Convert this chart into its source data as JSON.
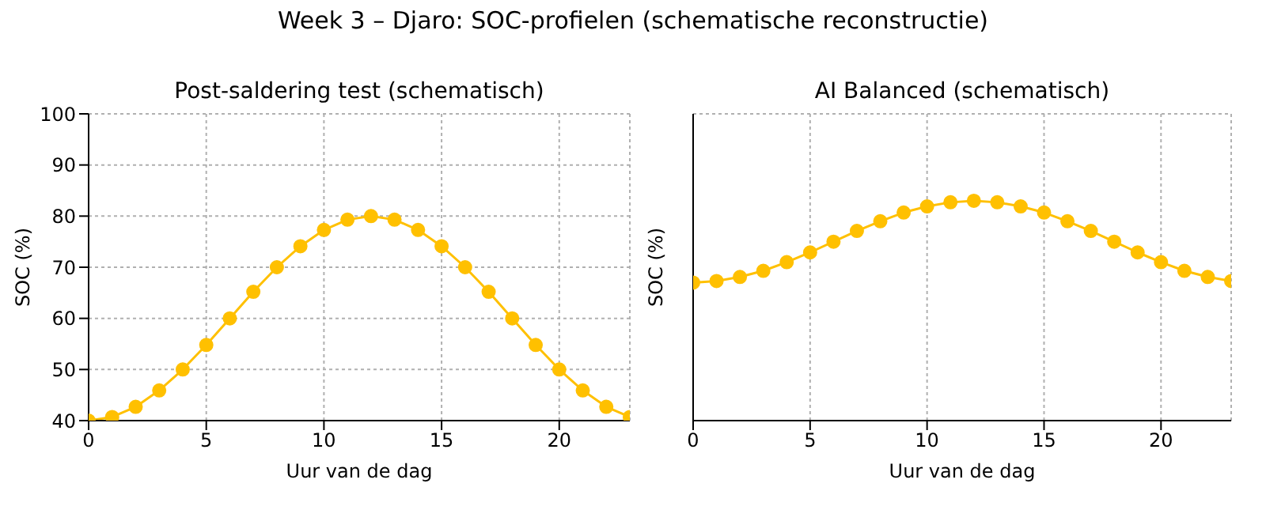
{
  "chart_data": [
    {
      "type": "line",
      "title": "Post-saldering test (schematisch)",
      "annotations": [
        "Week 3 – Djaro: SOC-profielen (schematische reconstructie)"
      ],
      "xlabel": "Uur van de dag",
      "ylabel": "SOC (%)",
      "x": [
        0,
        1,
        2,
        3,
        4,
        5,
        6,
        7,
        8,
        9,
        10,
        11,
        12,
        13,
        14,
        15,
        16,
        17,
        18,
        19,
        20,
        21,
        22,
        23
      ],
      "series": [
        {
          "color": "#ffc000",
          "values": [
            40,
            40.7,
            42.7,
            45.9,
            50,
            54.8,
            60,
            65.2,
            70,
            74.1,
            77.3,
            79.3,
            80,
            79.3,
            77.3,
            74.1,
            70,
            65.2,
            60,
            54.8,
            50,
            45.9,
            42.7,
            40.7
          ]
        }
      ],
      "xlim": [
        0,
        23
      ],
      "xticks": [
        0,
        5,
        10,
        15,
        20
      ],
      "ylim": [
        40,
        100
      ],
      "yticks": [
        40,
        50,
        60,
        70,
        80,
        90,
        100
      ],
      "grid": true,
      "marker": "circle",
      "line_style": "solid"
    },
    {
      "type": "line",
      "title": "AI Balanced (schematisch)",
      "xlabel": "Uur van de dag",
      "ylabel": "SOC (%)",
      "x": [
        0,
        1,
        2,
        3,
        4,
        5,
        6,
        7,
        8,
        9,
        10,
        11,
        12,
        13,
        14,
        15,
        16,
        17,
        18,
        19,
        20,
        21,
        22,
        23
      ],
      "series": [
        {
          "color": "#ffc000",
          "values": [
            67,
            67.3,
            68.1,
            69.3,
            71,
            72.9,
            75,
            77.1,
            79,
            80.7,
            81.9,
            82.7,
            83,
            82.7,
            81.9,
            80.7,
            79,
            77.1,
            75,
            72.9,
            71,
            69.3,
            68.1,
            67.3
          ]
        }
      ],
      "xlim": [
        0,
        23
      ],
      "xticks": [
        0,
        5,
        10,
        15,
        20
      ],
      "ylim": [
        40,
        100
      ],
      "yticks": [
        40,
        50,
        60,
        70,
        80,
        90,
        100
      ],
      "grid": true,
      "marker": "circle",
      "line_style": "solid",
      "tick_labels": "x"
    }
  ]
}
